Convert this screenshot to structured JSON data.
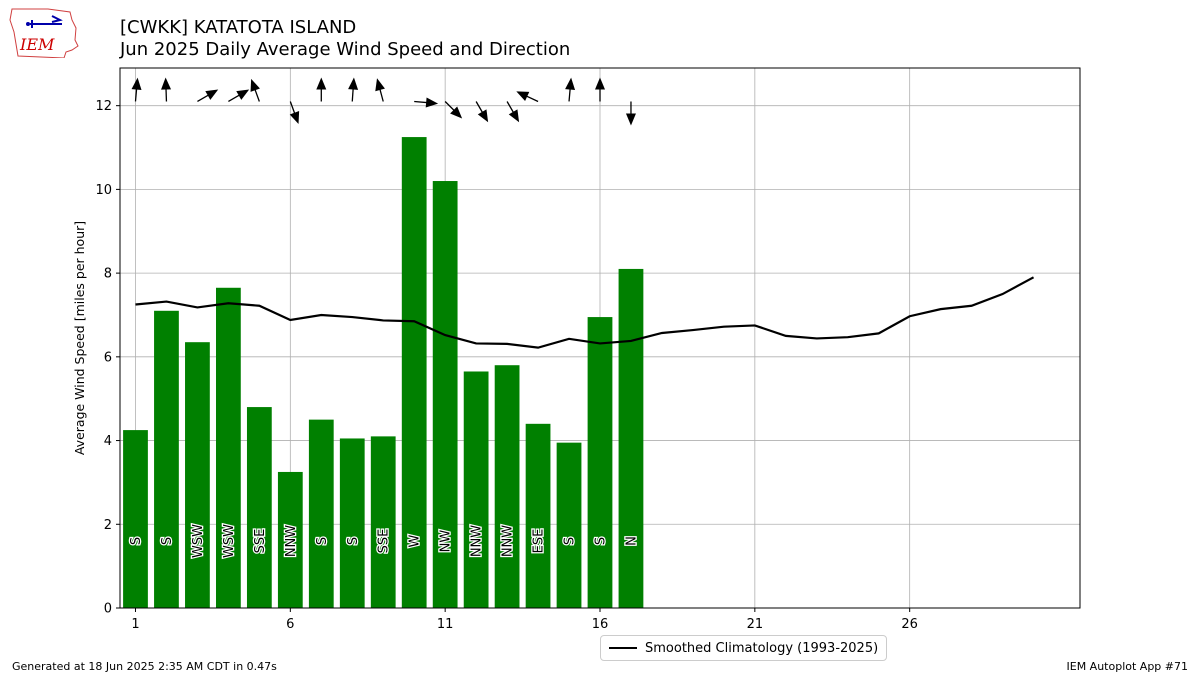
{
  "header": {
    "logo_text": "IEM",
    "title_line1": "[CWKK] KATATOTA ISLAND",
    "title_line2": "Jun 2025 Daily Average Wind Speed and Direction"
  },
  "footer": {
    "generated": "Generated at 18 Jun 2025 2:35 AM CDT in 0.47s",
    "app": "IEM Autoplot App #71"
  },
  "colors": {
    "bar": "#008000",
    "climatology": "#000000",
    "grid": "#b0b0b0"
  },
  "chart_data": {
    "type": "bar",
    "title": "Jun 2025 Daily Average Wind Speed and Direction",
    "ylabel": "Average Wind Speed [miles per hour]",
    "xlim": [
      0.5,
      31.5
    ],
    "ylim": [
      0,
      12.9
    ],
    "xticks": [
      1,
      6,
      11,
      16,
      21,
      26
    ],
    "yticks": [
      0,
      2,
      4,
      6,
      8,
      10,
      12
    ],
    "grid": true,
    "legend_position": "bottom-center",
    "bars": {
      "days": [
        1,
        2,
        3,
        4,
        5,
        6,
        7,
        8,
        9,
        10,
        11,
        12,
        13,
        14,
        15,
        16,
        17
      ],
      "values": [
        4.25,
        7.1,
        6.35,
        7.65,
        4.8,
        3.25,
        4.5,
        4.05,
        4.1,
        11.25,
        10.2,
        5.65,
        5.8,
        4.4,
        3.95,
        6.95,
        8.1
      ],
      "direction_labels": [
        "S",
        "S",
        "WSW",
        "WSW",
        "SSE",
        "NNW",
        "S",
        "S",
        "SSE",
        "W",
        "NW",
        "NNW",
        "NNW",
        "ESE",
        "S",
        "S",
        "N"
      ],
      "direction_degrees": [
        185,
        178,
        240,
        240,
        160,
        340,
        180,
        184,
        165,
        275,
        315,
        330,
        330,
        115,
        185,
        180,
        360
      ]
    },
    "climatology": {
      "name": "Smoothed Climatology (1993-2025)",
      "days": [
        1,
        2,
        3,
        4,
        5,
        6,
        7,
        8,
        9,
        10,
        11,
        12,
        13,
        14,
        15,
        16,
        17,
        18,
        19,
        20,
        21,
        22,
        23,
        24,
        25,
        26,
        27,
        28,
        29,
        30
      ],
      "values": [
        7.25,
        7.32,
        7.18,
        7.28,
        7.22,
        6.88,
        7.0,
        6.95,
        6.87,
        6.85,
        6.52,
        6.32,
        6.31,
        6.22,
        6.43,
        6.32,
        6.38,
        6.57,
        6.64,
        6.72,
        6.75,
        6.5,
        6.44,
        6.47,
        6.56,
        6.97,
        7.14,
        7.22,
        7.5,
        7.9
      ]
    }
  }
}
